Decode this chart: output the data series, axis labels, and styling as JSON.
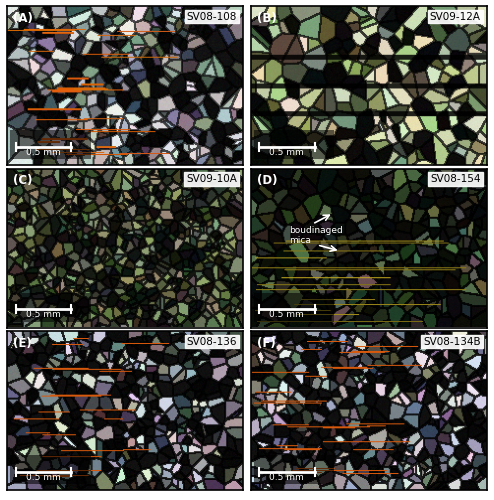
{
  "figure_size": [
    4.94,
    5.0
  ],
  "dpi": 100,
  "background_color": "#ffffff",
  "border_color": "#000000",
  "panels": [
    {
      "label": "(A)",
      "sample": "SV08-108",
      "scalebar": "0.5 mm",
      "style": "A"
    },
    {
      "label": "(B)",
      "sample": "SV09-12A",
      "scalebar": "0.5 mm",
      "style": "B"
    },
    {
      "label": "(C)",
      "sample": "SV09-10A",
      "scalebar": "0.5 mm",
      "style": "C"
    },
    {
      "label": "(D)",
      "sample": "SV08-154",
      "scalebar": "0.5 mm",
      "style": "D",
      "has_annotation": true
    },
    {
      "label": "(E)",
      "sample": "SV08-136",
      "scalebar": "0.5 mm",
      "style": "E"
    },
    {
      "label": "(F)",
      "sample": "SV08-134B",
      "scalebar": "0.5 mm",
      "style": "F"
    }
  ]
}
